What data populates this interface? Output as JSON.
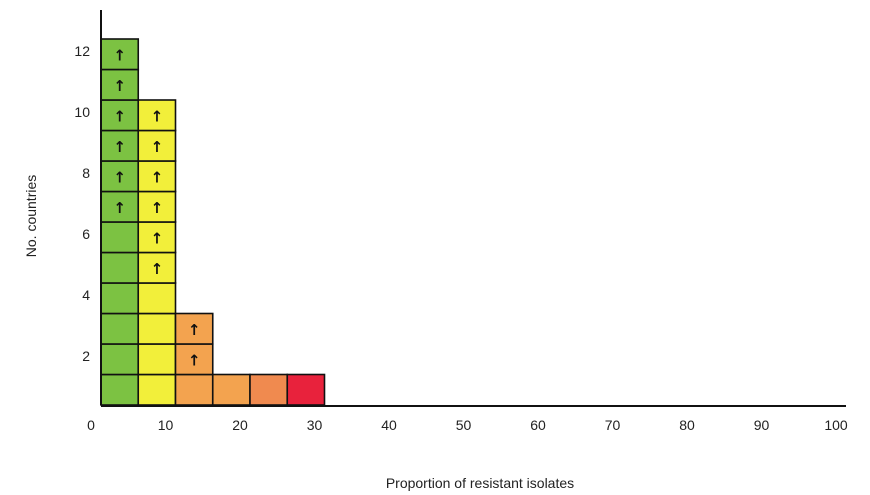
{
  "chart_data": {
    "type": "bar",
    "xlabel": "Proportion of resistant isolates",
    "ylabel": "No. countries",
    "xlim": [
      0,
      100
    ],
    "ylim": [
      0,
      13
    ],
    "x_ticks": [
      "0",
      "10",
      "20",
      "30",
      "40",
      "50",
      "60",
      "70",
      "80",
      "90",
      "100"
    ],
    "y_ticks": [
      "2",
      "4",
      "6",
      "8",
      "10",
      "12"
    ],
    "bin_width": 5,
    "bins": [
      {
        "x_start": 0,
        "x_end": 5,
        "count": 12,
        "arrow_count": 6,
        "color": "#7cc242"
      },
      {
        "x_start": 5,
        "x_end": 10,
        "count": 10,
        "arrow_count": 6,
        "color": "#f2ef3a"
      },
      {
        "x_start": 10,
        "x_end": 15,
        "count": 3,
        "arrow_count": 2,
        "color": "#f3a34f"
      },
      {
        "x_start": 15,
        "x_end": 20,
        "count": 1,
        "arrow_count": 0,
        "color": "#f3a34f"
      },
      {
        "x_start": 20,
        "x_end": 25,
        "count": 1,
        "arrow_count": 0,
        "color": "#f08a4f"
      },
      {
        "x_start": 25,
        "x_end": 30,
        "count": 1,
        "arrow_count": 0,
        "color": "#e8223c"
      }
    ],
    "arrow_glyph": "↑",
    "grid": false,
    "legend": "none"
  }
}
